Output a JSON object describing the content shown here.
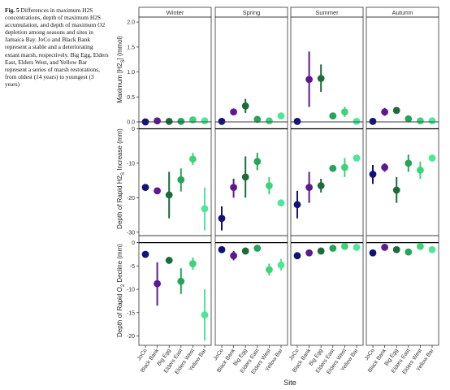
{
  "caption": {
    "label": "Fig. 5",
    "text": "Differences in maximum H2S concentrations, depth of maximum H2S accumulation, and depth of maximum O2 depletion among seasons and sites in Jamaica Bay. JoCo and Black Bank represent a stable and a deteriorating extant marsh, respectively. Big Egg, Elders East, Elders West, and Yellow Bar represent a series of marsh restorations, from oldest (14 years) to youngest (3 years)"
  },
  "chart_data": {
    "type": "scatter",
    "xlabel": "Site",
    "seasons": [
      "Winter",
      "Spring",
      "Summer",
      "Autumn"
    ],
    "sites": [
      "JoCo",
      "Black Bank",
      "Big Egg",
      "Elders East",
      "Elders West",
      "Yellow Bar"
    ],
    "site_colors": [
      "#12127a",
      "#5c1a8e",
      "#1d6b3c",
      "#27a35a",
      "#3ed27a",
      "#4fe69a"
    ],
    "grid": false,
    "rows": [
      {
        "ylabel": "Maximum [H2S] (mmol)",
        "ylim": [
          0,
          2.1
        ],
        "yticks": [
          0,
          0.5,
          1.0,
          1.5,
          2.0
        ],
        "ytick_labels": [
          "0.0",
          "0.5",
          "1.0",
          "1.5",
          "2.0"
        ],
        "zero_line": false,
        "values": [
          [
            [
              0.0,
              0,
              0
            ],
            [
              0.02,
              0,
              0
            ],
            [
              0.01,
              0,
              0
            ],
            [
              0.01,
              0,
              0
            ],
            [
              0.04,
              0,
              0
            ],
            [
              0.02,
              0,
              0
            ]
          ],
          [
            [
              0.01,
              0,
              0
            ],
            [
              0.2,
              0,
              0
            ],
            [
              0.32,
              0.18,
              0.46
            ],
            [
              0.05,
              0,
              0
            ],
            [
              0.02,
              0,
              0
            ],
            [
              0.12,
              0,
              0
            ]
          ],
          [
            [
              0.01,
              0,
              0
            ],
            [
              0.85,
              0.3,
              1.41
            ],
            [
              0.87,
              0.6,
              1.15
            ],
            [
              0.12,
              0,
              0
            ],
            [
              0.2,
              0.1,
              0.3
            ],
            [
              0.01,
              0,
              0
            ]
          ],
          [
            [
              0.01,
              0,
              0
            ],
            [
              0.2,
              0.12,
              0.28
            ],
            [
              0.23,
              0,
              0
            ],
            [
              0.06,
              0,
              0
            ],
            [
              0.02,
              0,
              0
            ],
            [
              0.02,
              0,
              0
            ]
          ]
        ]
      },
      {
        "ylabel": "Depth of Rapid H2S Increase (mm)",
        "ylim": [
          -31,
          2
        ],
        "yticks": [
          0,
          -10,
          -20,
          -30
        ],
        "ytick_labels": [
          "0",
          "-10",
          "-20",
          "-30"
        ],
        "zero_line": true,
        "values": [
          [
            [
              -17,
              0,
              0
            ],
            [
              -18,
              0,
              0
            ],
            [
              -19.2,
              -26,
              -12.5
            ],
            [
              -14.8,
              -18.2,
              -11.5
            ],
            [
              -8.8,
              -10.5,
              -7
            ],
            [
              -23.2,
              -29.5,
              -17
            ]
          ],
          [
            [
              -26,
              -29.5,
              -22.5
            ],
            [
              -17,
              -20,
              -14.5
            ],
            [
              -14,
              -20,
              -8
            ],
            [
              -9.5,
              -12,
              -7
            ],
            [
              -16.5,
              -19,
              -14
            ],
            [
              -21.5,
              0,
              0
            ]
          ],
          [
            [
              -22,
              -26,
              -18
            ],
            [
              -17,
              -21.5,
              -12.5
            ],
            [
              -16.5,
              -18.5,
              -14.5
            ],
            [
              -11.5,
              0,
              0
            ],
            [
              -11.2,
              -14,
              -8.5
            ],
            [
              -8.5,
              0,
              0
            ]
          ],
          [
            [
              -13.2,
              -16,
              -10.5
            ],
            [
              -11.2,
              -12.5,
              -10
            ],
            [
              -17.8,
              -21.5,
              -14
            ],
            [
              -10,
              -12.5,
              -7.5
            ],
            [
              -12,
              -14.5,
              -9.5
            ],
            [
              -8.5,
              0,
              0
            ]
          ]
        ]
      },
      {
        "ylabel": "Depth of Rapid O2 Decline (mm)",
        "ylim": [
          -22,
          1.5
        ],
        "yticks": [
          0,
          -5,
          -10,
          -15,
          -20
        ],
        "ytick_labels": [
          "0",
          "-5",
          "-10",
          "-15",
          "-20"
        ],
        "zero_line": true,
        "values": [
          [
            [
              -2.5,
              0,
              0
            ],
            [
              -8.8,
              -13.5,
              -4.2
            ],
            [
              -3.8,
              0,
              0
            ],
            [
              -8.3,
              -11,
              -5.5
            ],
            [
              -4.5,
              -5.8,
              -3.2
            ],
            [
              -15.5,
              -21,
              -10
            ]
          ],
          [
            [
              -1.5,
              0,
              0
            ],
            [
              -2.8,
              -3.8,
              -1.8
            ],
            [
              -1.8,
              0,
              0
            ],
            [
              -1.2,
              0,
              0
            ],
            [
              -5.8,
              -7,
              -4.5
            ],
            [
              -4.8,
              -6,
              -3.5
            ]
          ],
          [
            [
              -2.8,
              0,
              0
            ],
            [
              -2.2,
              0,
              0
            ],
            [
              -1.8,
              0,
              0
            ],
            [
              -1.2,
              0,
              0
            ],
            [
              -0.8,
              0,
              0
            ],
            [
              -1,
              0,
              0
            ]
          ],
          [
            [
              -2.2,
              0,
              0
            ],
            [
              -1,
              0,
              0
            ],
            [
              -1.5,
              0,
              0
            ],
            [
              -2,
              0,
              0
            ],
            [
              -0.8,
              0,
              0
            ],
            [
              -1.5,
              0,
              0
            ]
          ]
        ]
      }
    ]
  }
}
